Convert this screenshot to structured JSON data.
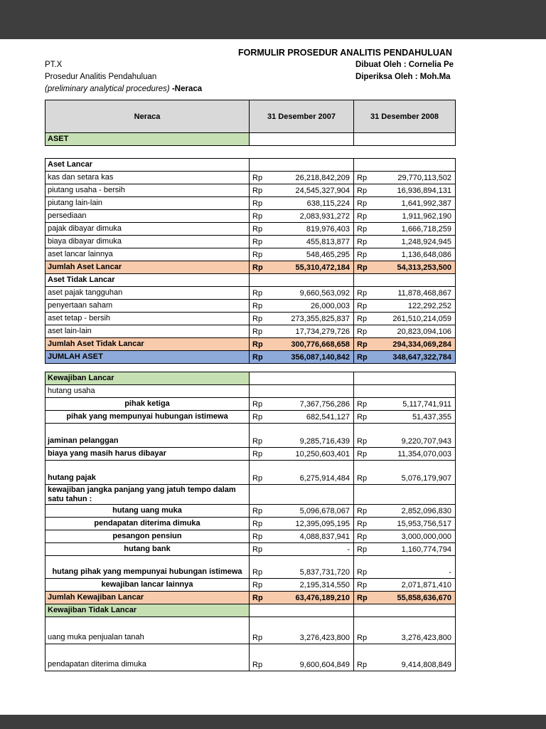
{
  "colors": {
    "band": "#3e3e3e",
    "header_fill": "#d9d9d9",
    "section_green": "#c6e0b4",
    "total_orange": "#f8cbad",
    "total_blue": "#8eaadb"
  },
  "header": {
    "title": "FORMULIR PROSEDUR ANALITIS PENDAHULUAN",
    "company": "PT.X",
    "prepared_by": "Dibuat Oleh : Cornelia Pe",
    "subtitle": "Prosedur Analitis Pendahuluan",
    "reviewed_by": "Diperiksa Oleh : Moh.Ma",
    "subtitle_en": "(preliminary analytical procedures)",
    "subtitle_suffix": " -Neraca"
  },
  "table": {
    "currency": "Rp",
    "columns": [
      "Neraca",
      "31 Desember 2007",
      "31 Desember 2008"
    ],
    "rows": [
      {
        "type": "section-green",
        "label": "ASET"
      },
      {
        "type": "spacer",
        "label": ""
      },
      {
        "type": "section-bold",
        "label": "Aset Lancar"
      },
      {
        "type": "item",
        "label": "kas dan setara kas",
        "v2007": "26,218,842,209",
        "v2008": "29,770,113,502"
      },
      {
        "type": "item",
        "label": "piutang usaha - bersih",
        "v2007": "24,545,327,904",
        "v2008": "16,936,894,131"
      },
      {
        "type": "item",
        "label": "piutang lain-lain",
        "v2007": "638,115,224",
        "v2008": "1,641,992,387"
      },
      {
        "type": "item",
        "label": "persediaan",
        "v2007": "2,083,931,272",
        "v2008": "1,911,962,190"
      },
      {
        "type": "item",
        "label": "pajak dibayar dimuka",
        "v2007": "819,976,403",
        "v2008": "1,666,718,259"
      },
      {
        "type": "item",
        "label": "biaya dibayar dimuka",
        "v2007": "455,813,877",
        "v2008": "1,248,924,945"
      },
      {
        "type": "item",
        "label": "aset lancar lainnya",
        "v2007": "548,465,295",
        "v2008": "1,136,648,086"
      },
      {
        "type": "total-orange",
        "label": "Jumlah Aset Lancar",
        "v2007": "55,310,472,184",
        "v2008": "54,313,253,500"
      },
      {
        "type": "section-bold",
        "label": "Aset Tidak Lancar"
      },
      {
        "type": "item",
        "label": "aset pajak tangguhan",
        "v2007": "9,660,563,092",
        "v2008": "11,878,468,867"
      },
      {
        "type": "item",
        "label": "penyertaan saham",
        "v2007": "26,000,003",
        "v2008": "122,292,252"
      },
      {
        "type": "item",
        "label": "aset tetap - bersih",
        "v2007": "273,355,825,837",
        "v2008": "261,510,214,059"
      },
      {
        "type": "item",
        "label": "aset lain-lain",
        "v2007": "17,734,279,726",
        "v2008": "20,823,094,106"
      },
      {
        "type": "total-orange",
        "label": "Jumlah Aset Tidak Lancar",
        "v2007": "300,776,668,658",
        "v2008": "294,334,069,284"
      },
      {
        "type": "total-blue",
        "label": "JUMLAH ASET",
        "v2007": "356,087,140,842",
        "v2008": "348,647,322,784"
      },
      {
        "type": "spacer-sm",
        "label": ""
      },
      {
        "type": "section-green",
        "label": "Kewajiban Lancar"
      },
      {
        "type": "item",
        "label": "hutang usaha"
      },
      {
        "type": "item-center",
        "label": "pihak ketiga",
        "v2007": "7,367,756,286",
        "v2008": "5,117,741,911"
      },
      {
        "type": "item-center",
        "label": "pihak yang mempunyai hubungan istimewa",
        "v2007": "682,541,127",
        "v2008": "51,437,355"
      },
      {
        "type": "tall-bold",
        "label": "jaminan pelanggan",
        "v2007": "9,285,716,439",
        "v2008": "9,220,707,943"
      },
      {
        "type": "item-bold",
        "label": "biaya yang masih harus dibayar",
        "v2007": "10,250,603,401",
        "v2008": "11,354,070,003"
      },
      {
        "type": "tall-bold",
        "label": "hutang pajak",
        "v2007": "6,275,914,484",
        "v2008": "5,076,179,907"
      },
      {
        "type": "wrap-bold",
        "label": "kewajiban jangka panjang yang jatuh tempo dalam satu tahun :"
      },
      {
        "type": "item-center",
        "label": "hutang uang muka",
        "v2007": "5,096,678,067",
        "v2008": "2,852,096,830"
      },
      {
        "type": "item-center",
        "label": "pendapatan diterima dimuka",
        "v2007": "12,395,095,195",
        "v2008": "15,953,756,517"
      },
      {
        "type": "item-center",
        "label": "pesangon pensiun",
        "v2007": "4,088,837,941",
        "v2008": "3,000,000,000"
      },
      {
        "type": "item-center",
        "label": "hutang bank",
        "v2007": "-",
        "v2008": "1,160,774,794"
      },
      {
        "type": "tall-center",
        "label": "hutang pihak yang mempunyai hubungan istimewa",
        "v2007": "5,837,731,720",
        "v2008": "-"
      },
      {
        "type": "item-center",
        "label": "kewajiban lancar lainnya",
        "v2007": "2,195,314,550",
        "v2008": "2,071,871,410"
      },
      {
        "type": "total-orange",
        "label": "Jumlah Kewajiban Lancar",
        "v2007": "63,476,189,210",
        "v2008": "55,858,636,670"
      },
      {
        "type": "section-green",
        "label": "Kewajiban Tidak Lancar"
      },
      {
        "type": "tall",
        "label": "uang muka penjualan tanah",
        "v2007": "3,276,423,800",
        "v2008": "3,276,423,800"
      },
      {
        "type": "tall",
        "label": "pendapatan diterima dimuka",
        "v2007": "9,600,604,849",
        "v2008": "9,414,808,849"
      }
    ]
  }
}
